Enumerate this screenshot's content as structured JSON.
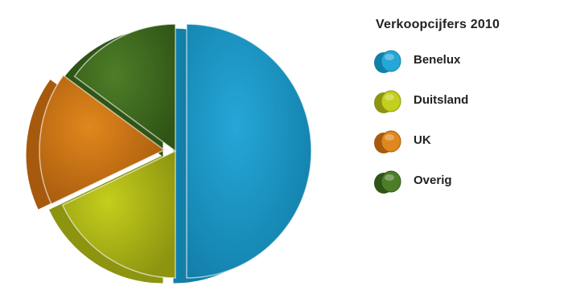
{
  "chart_data": {
    "type": "pie",
    "title": "Verkoopcijfers 2010",
    "categories": [
      "Benelux",
      "Duitsland",
      "UK",
      "Overig"
    ],
    "values": [
      50,
      18,
      17,
      15
    ],
    "colors": [
      "#25a7d8",
      "#c4ce1c",
      "#e0871d",
      "#4e7d27"
    ],
    "dark_colors": [
      "#127fa9",
      "#8c9410",
      "#a75a0d",
      "#2f5516"
    ],
    "exploded": [
      "Benelux",
      "UK"
    ],
    "style": "3d-exploded",
    "legend_position": "right"
  }
}
